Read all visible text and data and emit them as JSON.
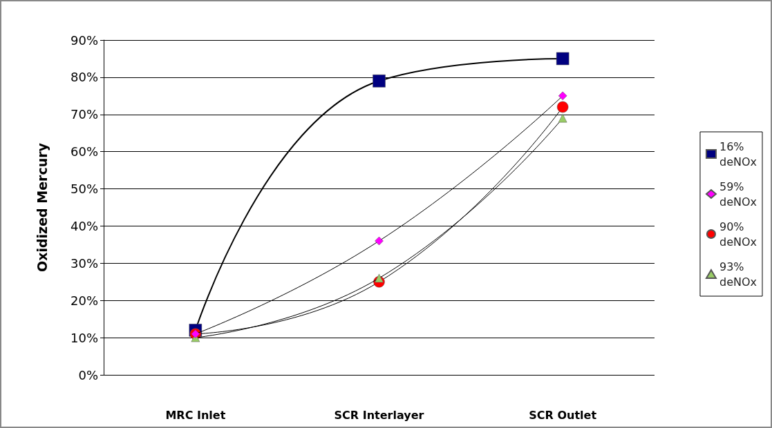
{
  "chart_data": {
    "type": "line",
    "ylabel": "Oxidized Mercury",
    "categories": [
      "MRC Inlet",
      "SCR Interlayer",
      "SCR Outlet"
    ],
    "series": [
      {
        "name": "16% deNOx",
        "color": "#000080",
        "marker": "square",
        "values": [
          12,
          79,
          85
        ]
      },
      {
        "name": "59% deNOx",
        "color": "#ff00ff",
        "marker": "diamond",
        "values": [
          11,
          36,
          75
        ]
      },
      {
        "name": "90% deNOx",
        "color": "#ff0000",
        "marker": "circle",
        "values": [
          11,
          25,
          72
        ]
      },
      {
        "name": "93% deNOx",
        "color": "#99cc66",
        "marker": "triangle",
        "values": [
          10,
          26,
          69
        ]
      }
    ],
    "ylim": [
      0,
      90
    ],
    "yticks": [
      {
        "value": 0,
        "label": "0%"
      },
      {
        "value": 10,
        "label": "10%"
      },
      {
        "value": 20,
        "label": "20%"
      },
      {
        "value": 30,
        "label": "30%"
      },
      {
        "value": 40,
        "label": "40%"
      },
      {
        "value": 50,
        "label": "50%"
      },
      {
        "value": 60,
        "label": "60%"
      },
      {
        "value": 70,
        "label": "70%"
      },
      {
        "value": 80,
        "label": "80%"
      },
      {
        "value": 90,
        "label": "90%"
      }
    ],
    "grid": "y",
    "legend": "right"
  }
}
